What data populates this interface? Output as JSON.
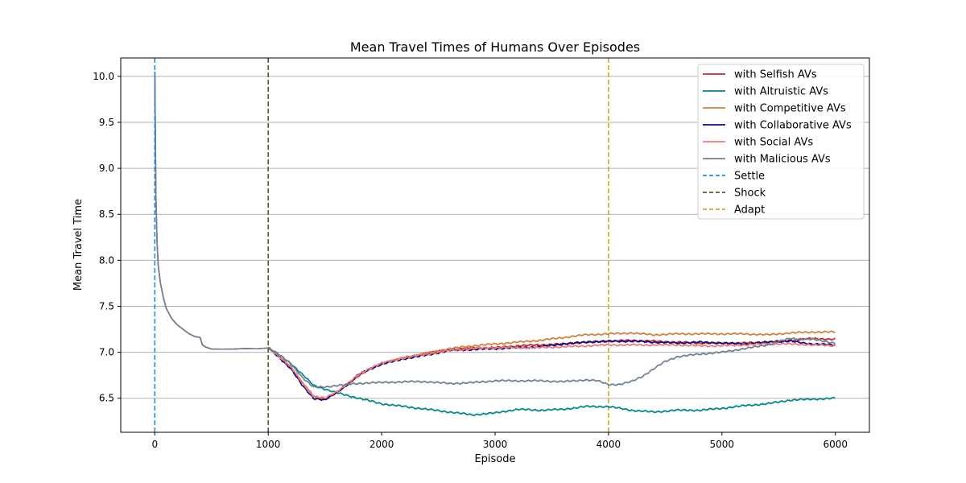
{
  "chart_data": {
    "type": "line",
    "title": "Mean Travel Times of Humans Over Episodes",
    "xlabel": "Episode",
    "ylabel": "Mean Travel Time",
    "xlim": [
      -300,
      6300
    ],
    "ylim": [
      6.13,
      10.2
    ],
    "xticks": [
      0,
      1000,
      2000,
      3000,
      4000,
      5000,
      6000
    ],
    "yticks": [
      6.5,
      7.0,
      7.5,
      8.0,
      8.5,
      9.0,
      9.5,
      10.0
    ],
    "ytick_labels": [
      "6.5",
      "7.0",
      "7.5",
      "8.0",
      "8.5",
      "9.0",
      "9.5",
      "10.0"
    ],
    "grid": "horizontal",
    "legend_position": "top-right",
    "shared_prefix": {
      "x": [
        0,
        5,
        10,
        20,
        30,
        50,
        75,
        100,
        150,
        200,
        250,
        300,
        350,
        400,
        420,
        450,
        500,
        600,
        700,
        800,
        900,
        1000
      ],
      "y": [
        10.05,
        9.3,
        8.7,
        8.2,
        7.95,
        7.75,
        7.6,
        7.48,
        7.37,
        7.3,
        7.25,
        7.2,
        7.17,
        7.16,
        7.08,
        7.06,
        7.04,
        7.03,
        7.03,
        7.04,
        7.04,
        7.05
      ]
    },
    "series": [
      {
        "name": "with Selfish AVs",
        "color": "#c0272d",
        "x": [
          1000,
          1100,
          1200,
          1300,
          1400,
          1500,
          1600,
          1700,
          1800,
          1900,
          2000,
          2200,
          2400,
          2600,
          2800,
          3000,
          3200,
          3400,
          3600,
          3800,
          4000,
          4200,
          4400,
          4600,
          4800,
          5000,
          5200,
          5400,
          5600,
          5800,
          6000
        ],
        "y": [
          7.05,
          6.95,
          6.84,
          6.67,
          6.52,
          6.49,
          6.56,
          6.65,
          6.75,
          6.82,
          6.88,
          6.94,
          6.99,
          7.03,
          7.05,
          7.05,
          7.07,
          7.08,
          7.09,
          7.11,
          7.12,
          7.13,
          7.12,
          7.11,
          7.1,
          7.1,
          7.1,
          7.11,
          7.13,
          7.15,
          7.14
        ]
      },
      {
        "name": "with Altruistic AVs",
        "color": "#00868b",
        "x": [
          1000,
          1100,
          1200,
          1300,
          1400,
          1500,
          1600,
          1700,
          1800,
          1900,
          2000,
          2200,
          2400,
          2600,
          2800,
          3000,
          3200,
          3400,
          3600,
          3800,
          3900,
          4000,
          4200,
          4400,
          4600,
          4800,
          5000,
          5200,
          5400,
          5600,
          5800,
          6000
        ],
        "y": [
          7.05,
          6.97,
          6.88,
          6.76,
          6.64,
          6.6,
          6.56,
          6.53,
          6.5,
          6.47,
          6.44,
          6.41,
          6.38,
          6.35,
          6.32,
          6.34,
          6.38,
          6.37,
          6.38,
          6.41,
          6.41,
          6.41,
          6.37,
          6.35,
          6.37,
          6.37,
          6.39,
          6.42,
          6.44,
          6.48,
          6.49,
          6.5
        ]
      },
      {
        "name": "with Competitive AVs",
        "color": "#d2823e",
        "x": [
          1000,
          1100,
          1200,
          1300,
          1400,
          1500,
          1600,
          1700,
          1800,
          1900,
          2000,
          2200,
          2400,
          2600,
          2800,
          3000,
          3200,
          3400,
          3600,
          3800,
          4000,
          4200,
          4400,
          4600,
          4800,
          5000,
          5200,
          5400,
          5600,
          5800,
          6000
        ],
        "y": [
          7.05,
          6.95,
          6.84,
          6.67,
          6.52,
          6.49,
          6.56,
          6.65,
          6.75,
          6.82,
          6.88,
          6.94,
          6.99,
          7.04,
          7.07,
          7.09,
          7.11,
          7.13,
          7.16,
          7.19,
          7.2,
          7.21,
          7.19,
          7.2,
          7.2,
          7.2,
          7.2,
          7.19,
          7.21,
          7.22,
          7.22
        ]
      },
      {
        "name": "with Collaborative AVs",
        "color": "#0b0b83",
        "x": [
          1000,
          1100,
          1200,
          1300,
          1400,
          1500,
          1600,
          1700,
          1800,
          1900,
          2000,
          2200,
          2400,
          2600,
          2800,
          3000,
          3200,
          3400,
          3600,
          3800,
          4000,
          4200,
          4400,
          4600,
          4800,
          5000,
          5200,
          5400,
          5600,
          5800,
          6000
        ],
        "y": [
          7.05,
          6.94,
          6.82,
          6.64,
          6.5,
          6.48,
          6.56,
          6.65,
          6.76,
          6.82,
          6.87,
          6.93,
          6.97,
          7.02,
          7.03,
          7.04,
          7.05,
          7.06,
          7.09,
          7.11,
          7.12,
          7.12,
          7.11,
          7.1,
          7.11,
          7.1,
          7.09,
          7.11,
          7.12,
          7.09,
          7.08
        ]
      },
      {
        "name": "with Social AVs",
        "color": "#f07a7a",
        "x": [
          1000,
          1100,
          1200,
          1300,
          1400,
          1500,
          1600,
          1700,
          1800,
          1900,
          2000,
          2200,
          2400,
          2600,
          2800,
          3000,
          3200,
          3400,
          3600,
          3800,
          4000,
          4200,
          4400,
          4600,
          4800,
          5000,
          5200,
          5400,
          5600,
          5800,
          6000
        ],
        "y": [
          7.05,
          6.95,
          6.84,
          6.67,
          6.52,
          6.5,
          6.57,
          6.66,
          6.76,
          6.83,
          6.88,
          6.94,
          6.98,
          7.02,
          7.04,
          7.05,
          7.05,
          7.05,
          7.06,
          7.07,
          7.08,
          7.08,
          7.08,
          7.08,
          7.07,
          7.07,
          7.08,
          7.09,
          7.09,
          7.08,
          7.07
        ]
      },
      {
        "name": "with Malicious AVs",
        "color": "#708090",
        "x": [
          1000,
          1100,
          1200,
          1300,
          1400,
          1500,
          1600,
          1700,
          1800,
          1900,
          2000,
          2200,
          2400,
          2600,
          2800,
          3000,
          3200,
          3400,
          3600,
          3800,
          3900,
          4000,
          4100,
          4200,
          4300,
          4400,
          4500,
          4600,
          4800,
          5000,
          5200,
          5400,
          5600,
          5800,
          6000
        ],
        "y": [
          7.05,
          6.97,
          6.87,
          6.73,
          6.62,
          6.62,
          6.64,
          6.65,
          6.66,
          6.67,
          6.67,
          6.68,
          6.68,
          6.66,
          6.67,
          6.69,
          6.69,
          6.69,
          6.68,
          6.7,
          6.69,
          6.65,
          6.65,
          6.68,
          6.74,
          6.82,
          6.9,
          6.95,
          6.98,
          7.0,
          7.04,
          7.08,
          7.15,
          7.14,
          7.1
        ]
      }
    ],
    "vlines": [
      {
        "name": "Settle",
        "x": 0,
        "color": "#1f8fe0"
      },
      {
        "name": "Shock",
        "x": 1000,
        "color": "#4f5e2a"
      },
      {
        "name": "Adapt",
        "x": 4000,
        "color": "#d9a420"
      }
    ]
  }
}
